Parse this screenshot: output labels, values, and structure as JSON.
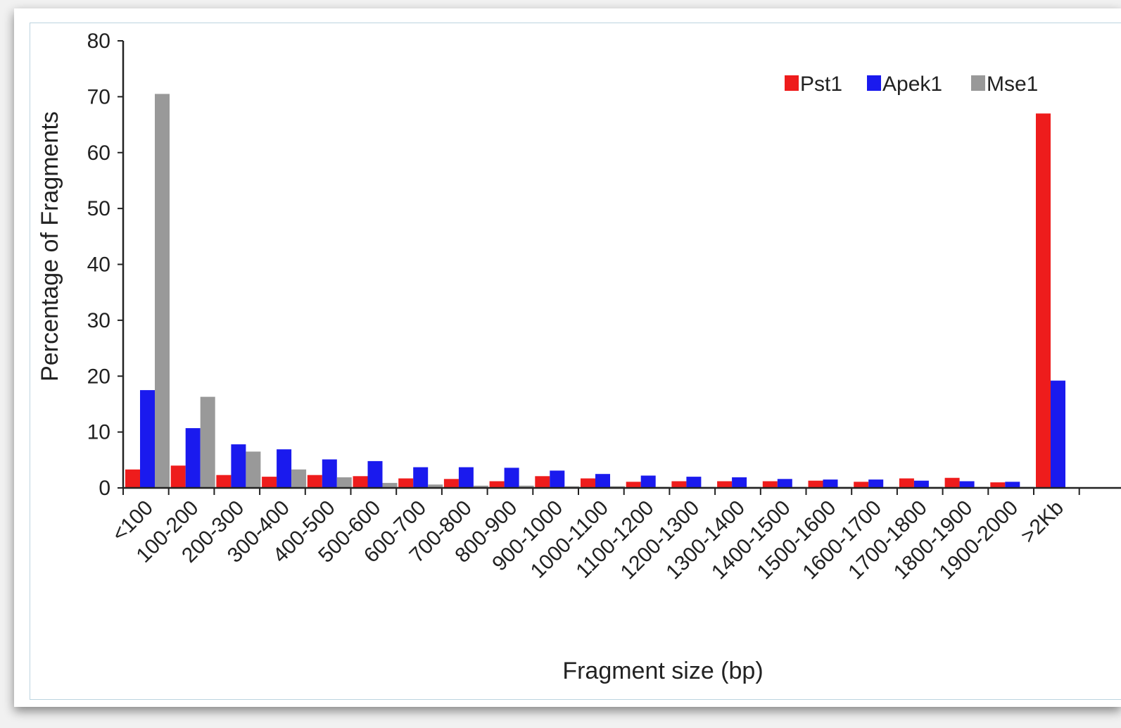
{
  "chart_data": {
    "type": "bar",
    "title": "",
    "xlabel": "Fragment size (bp)",
    "ylabel": "Percentage of Fragments",
    "ylim": [
      0,
      80
    ],
    "yticks": [
      0,
      10,
      20,
      30,
      40,
      50,
      60,
      70,
      80
    ],
    "grid": false,
    "legend_position": "top-right",
    "categories": [
      "<100",
      "100-200",
      "200-300",
      "300-400",
      "400-500",
      "500-600",
      "600-700",
      "700-800",
      "800-900",
      "900-1000",
      "1000-1100",
      "1100-1200",
      "1200-1300",
      "1300-1400",
      "1400-1500",
      "1500-1600",
      "1600-1700",
      "1700-1800",
      "1800-1900",
      "1900-2000",
      ">2Kb"
    ],
    "series": [
      {
        "name": "Pst1",
        "color": "#ee1c1c",
        "values": [
          3.3,
          4.0,
          2.3,
          2.0,
          2.3,
          2.1,
          1.7,
          1.6,
          1.2,
          2.1,
          1.7,
          1.1,
          1.2,
          1.2,
          1.2,
          1.3,
          1.1,
          1.7,
          1.8,
          1.0,
          67.0
        ]
      },
      {
        "name": "Apek1",
        "color": "#1a1aee",
        "values": [
          17.5,
          10.7,
          7.8,
          6.9,
          5.1,
          4.8,
          3.7,
          3.7,
          3.6,
          3.1,
          2.5,
          2.2,
          2.0,
          1.9,
          1.6,
          1.5,
          1.5,
          1.3,
          1.2,
          1.1,
          19.2
        ]
      },
      {
        "name": "Mse1",
        "color": "#999999",
        "values": [
          70.5,
          16.3,
          6.5,
          3.3,
          1.9,
          0.9,
          0.6,
          0.4,
          0.4,
          0.3,
          0.3,
          0.2,
          0.2,
          0.2,
          0.2,
          0.2,
          0.2,
          0.2,
          0.2,
          0.2,
          0.0
        ]
      }
    ]
  }
}
